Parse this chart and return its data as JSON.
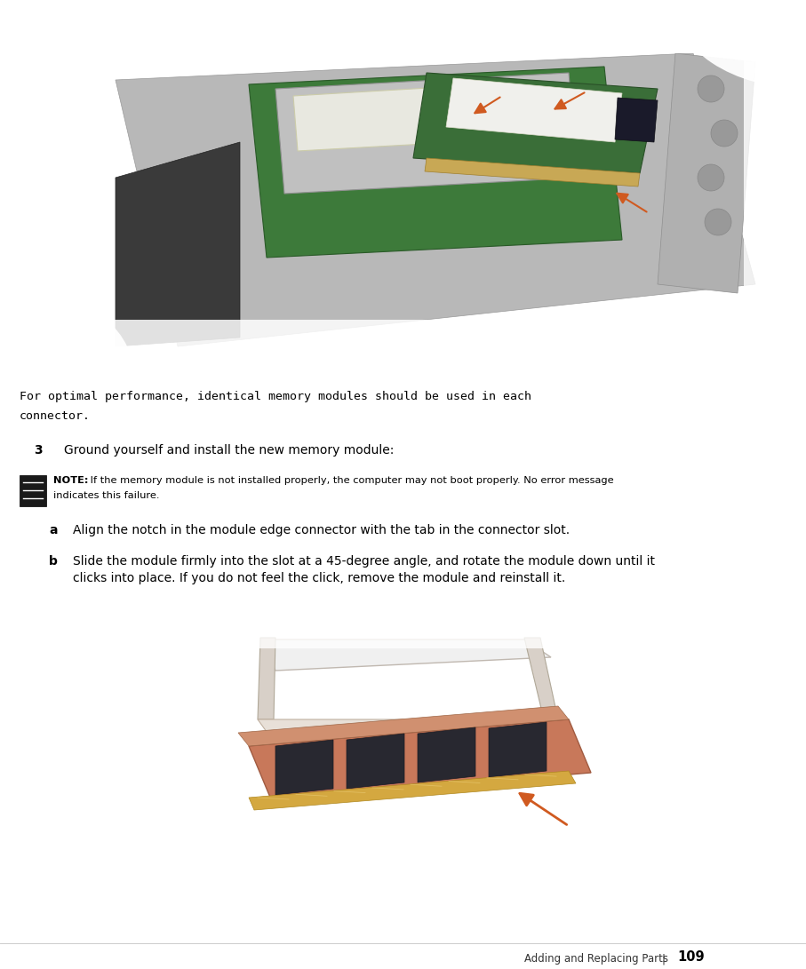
{
  "bg_color": "#ffffff",
  "page_width": 9.07,
  "page_height": 10.91,
  "dpi": 100,
  "monospace_text_line1": "For optimal performance, identical memory modules should be used in each",
  "monospace_text_line2": "connector.",
  "monospace_fontsize": 9.5,
  "step_number": "3",
  "step_text": "Ground yourself and install the new memory module:",
  "step_fontsize": 10,
  "note_bold": "NOTE:",
  "note_line1": " If the memory module is not installed properly, the computer may not boot properly. No error message",
  "note_line2": "indicates this failure.",
  "note_fontsize": 8.2,
  "sub_a_label": "a",
  "sub_a_text": "Align the notch in the module edge connector with the tab in the connector slot.",
  "sub_a_fontsize": 10,
  "sub_b_label": "b",
  "sub_b_line1": "Slide the module firmly into the slot at a 45-degree angle, and rotate the module down until it",
  "sub_b_line2": "clicks into place. If you do not feel the click, remove the module and reinstall it.",
  "sub_b_fontsize": 10,
  "footer_text": "Adding and Replacing Parts",
  "footer_sep": "|",
  "footer_page": "109",
  "footer_fontsize": 8.5,
  "footer_page_fontsize": 10.5,
  "arrow_color": "#d05a20",
  "note_icon_color": "#1a1a1a",
  "pcb_green": "#3d7a3a",
  "chip_dark": "#2a2a35",
  "connector_gold": "#c8a855",
  "mem_white": "#e8e8e0",
  "laptop_gray": "#b8b8b8",
  "pcb_green2": "#3a6e38"
}
